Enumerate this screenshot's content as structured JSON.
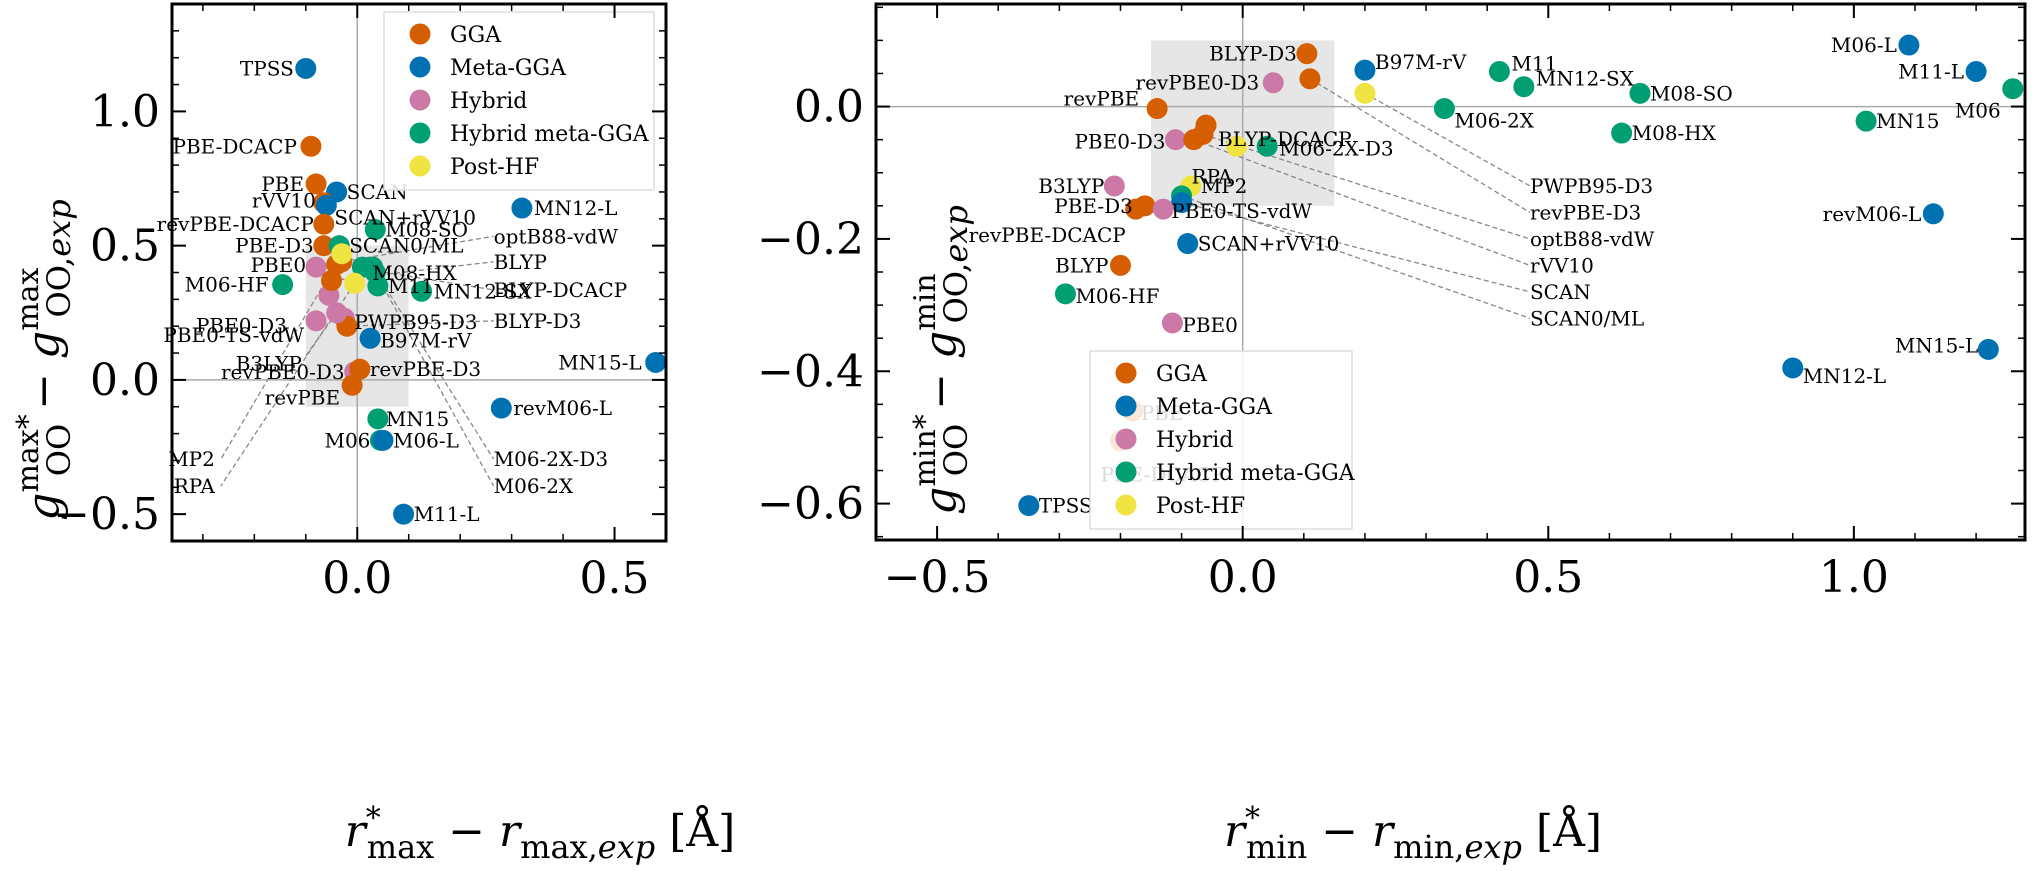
{
  "colors": {
    "GGA": "#D55E00",
    "Meta-GGA": "#0072B2",
    "Hybrid": "#CC79A7",
    "Hybrid meta-GGA": "#009E73",
    "Post-HF": "#F0E442"
  },
  "chart_data": [
    {
      "type": "scatter",
      "xlabel": "r*max − rmax,exp [Å]",
      "ylabel": "g*maxOO − gmaxOO,exp",
      "xlim": [
        -0.36,
        0.6
      ],
      "ylim": [
        -0.6,
        1.4
      ],
      "xticks": [
        {
          "v": 0.0,
          "label": "0.0"
        },
        {
          "v": 0.5,
          "label": "0.5"
        }
      ],
      "yticks": [
        {
          "v": -0.5,
          "label": "−0.5"
        },
        {
          "v": 0.0,
          "label": "0.0"
        },
        {
          "v": 0.5,
          "label": "0.5"
        },
        {
          "v": 1.0,
          "label": "1.0"
        }
      ],
      "grid": false,
      "legend": {
        "placement": "top-right",
        "entries": [
          "GGA",
          "Meta-GGA",
          "Hybrid",
          "Hybrid meta-GGA",
          "Post-HF"
        ]
      },
      "shaded_region": {
        "x": [
          -0.1,
          0.1
        ],
        "y": [
          -0.1,
          0.5
        ]
      },
      "points": [
        {
          "name": "TPSS",
          "cat": "Meta-GGA",
          "x": -0.1,
          "y": 1.16
        },
        {
          "name": "PBE-DCACP",
          "cat": "GGA",
          "x": -0.09,
          "y": 0.87
        },
        {
          "name": "PBE",
          "cat": "GGA",
          "x": -0.08,
          "y": 0.73
        },
        {
          "name": "SCAN",
          "cat": "Meta-GGA",
          "x": -0.04,
          "y": 0.7
        },
        {
          "name": "rVV10",
          "cat": "GGA",
          "x": -0.065,
          "y": 0.66
        },
        {
          "name": "SCAN+rVV10",
          "cat": "Meta-GGA",
          "x": -0.06,
          "y": 0.65
        },
        {
          "name": "revPBE-DCACP",
          "cat": "GGA",
          "x": -0.065,
          "y": 0.58
        },
        {
          "name": "MN12-L",
          "cat": "Meta-GGA",
          "x": 0.32,
          "y": 0.64
        },
        {
          "name": "M08-SO",
          "cat": "Hybrid meta-GGA",
          "x": 0.035,
          "y": 0.56
        },
        {
          "name": "PBE-D3",
          "cat": "GGA",
          "x": -0.065,
          "y": 0.5
        },
        {
          "name": "SCAN0/ML",
          "cat": "Hybrid meta-GGA",
          "x": -0.035,
          "y": 0.5
        },
        {
          "name": "PBE0",
          "cat": "Hybrid",
          "x": -0.08,
          "y": 0.42
        },
        {
          "name": "M06-HF",
          "cat": "Hybrid meta-GGA",
          "x": -0.145,
          "y": 0.355
        },
        {
          "name": "M08-HX",
          "cat": "Hybrid meta-GGA",
          "x": 0.01,
          "y": 0.42
        },
        {
          "name": "M11",
          "cat": "Hybrid meta-GGA",
          "x": 0.04,
          "y": 0.35
        },
        {
          "name": "MN12-SX",
          "cat": "Hybrid meta-GGA",
          "x": 0.125,
          "y": 0.33
        },
        {
          "name": "PBE0-D3",
          "cat": "Hybrid",
          "x": -0.055,
          "y": 0.315
        },
        {
          "name": "PBE0-TS-vdW",
          "cat": "Hybrid",
          "x": -0.08,
          "y": 0.22
        },
        {
          "name": "PWPB95-D3",
          "cat": "Hybrid",
          "x": -0.025,
          "y": 0.23
        },
        {
          "name": "B97M-rV",
          "cat": "Meta-GGA",
          "x": 0.025,
          "y": 0.155
        },
        {
          "name": "revPBE0-D3",
          "cat": "Hybrid",
          "x": -0.005,
          "y": 0.03
        },
        {
          "name": "revPBE-D3",
          "cat": "GGA",
          "x": 0.005,
          "y": 0.04
        },
        {
          "name": "revPBE",
          "cat": "GGA",
          "x": -0.01,
          "y": -0.02
        },
        {
          "name": "MN15-L",
          "cat": "Meta-GGA",
          "x": 0.58,
          "y": 0.065
        },
        {
          "name": "revM06-L",
          "cat": "Meta-GGA",
          "x": 0.28,
          "y": -0.105
        },
        {
          "name": "MN15",
          "cat": "Hybrid meta-GGA",
          "x": 0.04,
          "y": -0.145
        },
        {
          "name": "M06",
          "cat": "Hybrid meta-GGA",
          "x": 0.045,
          "y": -0.225
        },
        {
          "name": "M06-L",
          "cat": "Meta-GGA",
          "x": 0.05,
          "y": -0.225
        },
        {
          "name": "M11-L",
          "cat": "Meta-GGA",
          "x": 0.09,
          "y": -0.5
        },
        {
          "name": "BLYP-DCACP",
          "cat": "GGA",
          "x": -0.04,
          "y": 0.43
        },
        {
          "name": "BLYP",
          "cat": "GGA",
          "x": -0.05,
          "y": 0.37
        },
        {
          "name": "optB88-vdW",
          "cat": "GGA",
          "x": -0.03,
          "y": 0.44
        },
        {
          "name": "BLYP-D3",
          "cat": "GGA",
          "x": -0.02,
          "y": 0.2
        },
        {
          "name": "M06-2X-D3",
          "cat": "Hybrid meta-GGA",
          "x": 0.03,
          "y": 0.42
        },
        {
          "name": "M06-2X",
          "cat": "Hybrid meta-GGA",
          "x": 0.035,
          "y": 0.4
        },
        {
          "name": "MP2",
          "cat": "Post-HF",
          "x": -0.03,
          "y": 0.47
        },
        {
          "name": "RPA",
          "cat": "Post-HF",
          "x": -0.005,
          "y": 0.36
        },
        {
          "name": "B3LYP",
          "cat": "Hybrid",
          "x": -0.04,
          "y": 0.25
        }
      ],
      "label_lines": [
        {
          "name": "optB88-vdW",
          "from": [
            -0.03,
            0.44
          ],
          "to": [
            0.265,
            0.535
          ]
        },
        {
          "name": "BLYP",
          "from": [
            -0.05,
            0.37
          ],
          "to": [
            0.265,
            0.44
          ]
        },
        {
          "name": "BLYP-DCACP",
          "from": [
            -0.04,
            0.43
          ],
          "to": [
            0.265,
            0.335
          ]
        },
        {
          "name": "BLYP-D3",
          "from": [
            -0.02,
            0.2
          ],
          "to": [
            0.265,
            0.22
          ]
        },
        {
          "name": "M06-2X-D3",
          "from": [
            0.03,
            0.42
          ],
          "to": [
            0.265,
            -0.295
          ]
        },
        {
          "name": "M06-2X",
          "from": [
            0.035,
            0.4
          ],
          "to": [
            0.265,
            -0.395
          ]
        },
        {
          "name": "MP2",
          "from": [
            -0.03,
            0.47
          ],
          "to": [
            -0.265,
            -0.295
          ]
        },
        {
          "name": "RPA",
          "from": [
            -0.005,
            0.36
          ],
          "to": [
            -0.265,
            -0.395
          ]
        },
        {
          "name": "B3LYP",
          "from": [
            -0.04,
            0.25
          ],
          "to": [
            -0.1,
            0.09
          ]
        }
      ]
    },
    {
      "type": "scatter",
      "xlabel": "r*min − rmin,exp [Å]",
      "ylabel": "g*minOO − gminOO,exp",
      "xlim": [
        -0.6,
        1.28
      ],
      "ylim": [
        -0.655,
        0.155
      ],
      "xticks": [
        {
          "v": -0.5,
          "label": "−0.5"
        },
        {
          "v": 0.0,
          "label": "0.0"
        },
        {
          "v": 0.5,
          "label": "0.5"
        },
        {
          "v": 1.0,
          "label": "1.0"
        }
      ],
      "yticks": [
        {
          "v": -0.6,
          "label": "−0.6"
        },
        {
          "v": -0.4,
          "label": "−0.4"
        },
        {
          "v": -0.2,
          "label": "−0.2"
        },
        {
          "v": 0.0,
          "label": "0.0"
        }
      ],
      "grid": false,
      "legend": {
        "placement": "bottom-right",
        "entries": [
          "GGA",
          "Meta-GGA",
          "Hybrid",
          "Hybrid meta-GGA",
          "Post-HF"
        ]
      },
      "shaded_region": {
        "x": [
          -0.15,
          0.15
        ],
        "y": [
          -0.15,
          0.1
        ]
      },
      "points": [
        {
          "name": "BLYP-D3",
          "cat": "GGA",
          "x": 0.105,
          "y": 0.08
        },
        {
          "name": "B97M-rV",
          "cat": "Meta-GGA",
          "x": 0.2,
          "y": 0.055
        },
        {
          "name": "M11",
          "cat": "Hybrid meta-GGA",
          "x": 0.42,
          "y": 0.053
        },
        {
          "name": "MN12-SX",
          "cat": "Hybrid meta-GGA",
          "x": 0.46,
          "y": 0.03
        },
        {
          "name": "M06-L",
          "cat": "Meta-GGA",
          "x": 1.09,
          "y": 0.093
        },
        {
          "name": "M11-L",
          "cat": "Meta-GGA",
          "x": 1.2,
          "y": 0.053
        },
        {
          "name": "M06",
          "cat": "Hybrid meta-GGA",
          "x": 1.26,
          "y": 0.027
        },
        {
          "name": "revPBE0-D3",
          "cat": "Hybrid",
          "x": 0.05,
          "y": 0.036
        },
        {
          "name": "revPBE-D3",
          "cat": "GGA",
          "x": 0.11,
          "y": 0.042
        },
        {
          "name": "PWPB95-D3",
          "cat": "Post-HF",
          "x": 0.2,
          "y": 0.02
        },
        {
          "name": "revPBE",
          "cat": "GGA",
          "x": -0.14,
          "y": -0.003
        },
        {
          "name": "M06-2X",
          "cat": "Hybrid meta-GGA",
          "x": 0.33,
          "y": -0.003
        },
        {
          "name": "M08-SO",
          "cat": "Hybrid meta-GGA",
          "x": 0.65,
          "y": 0.02
        },
        {
          "name": "MN15",
          "cat": "Hybrid meta-GGA",
          "x": 1.02,
          "y": -0.022
        },
        {
          "name": "BLYP-DCACP",
          "cat": "GGA",
          "x": -0.06,
          "y": -0.028
        },
        {
          "name": "M08-HX",
          "cat": "Hybrid meta-GGA",
          "x": 0.62,
          "y": -0.04
        },
        {
          "name": "PBE0-D3",
          "cat": "Hybrid",
          "x": -0.11,
          "y": -0.05
        },
        {
          "name": "optB88-vdW",
          "cat": "GGA",
          "x": -0.065,
          "y": -0.042
        },
        {
          "name": "rVV10",
          "cat": "GGA",
          "x": -0.08,
          "y": -0.05
        },
        {
          "name": "RPA",
          "cat": "Post-HF",
          "x": -0.01,
          "y": -0.06
        },
        {
          "name": "M06-2X-D3",
          "cat": "Hybrid meta-GGA",
          "x": 0.04,
          "y": -0.06
        },
        {
          "name": "B3LYP",
          "cat": "Hybrid",
          "x": -0.21,
          "y": -0.12
        },
        {
          "name": "MP2",
          "cat": "Post-HF",
          "x": -0.085,
          "y": -0.12
        },
        {
          "name": "SCAN0/ML",
          "cat": "Hybrid meta-GGA",
          "x": -0.1,
          "y": -0.135
        },
        {
          "name": "PBE-D3",
          "cat": "GGA",
          "x": -0.16,
          "y": -0.15
        },
        {
          "name": "revPBE-DCACP",
          "cat": "GGA",
          "x": -0.175,
          "y": -0.155
        },
        {
          "name": "SCAN",
          "cat": "Meta-GGA",
          "x": -0.1,
          "y": -0.145
        },
        {
          "name": "PBE0-TS-vdW",
          "cat": "Hybrid",
          "x": -0.13,
          "y": -0.155
        },
        {
          "name": "revM06-L",
          "cat": "Meta-GGA",
          "x": 1.13,
          "y": -0.162
        },
        {
          "name": "SCAN+rVV10",
          "cat": "Meta-GGA",
          "x": -0.09,
          "y": -0.207
        },
        {
          "name": "BLYP",
          "cat": "GGA",
          "x": -0.2,
          "y": -0.24
        },
        {
          "name": "M06-HF",
          "cat": "Hybrid meta-GGA",
          "x": -0.29,
          "y": -0.283
        },
        {
          "name": "PBE0",
          "cat": "Hybrid",
          "x": -0.115,
          "y": -0.327
        },
        {
          "name": "MN15-L",
          "cat": "Meta-GGA",
          "x": 1.22,
          "y": -0.367
        },
        {
          "name": "MN12-L",
          "cat": "Meta-GGA",
          "x": 0.9,
          "y": -0.395
        },
        {
          "name": "PBE",
          "cat": "GGA",
          "x": -0.18,
          "y": -0.46
        },
        {
          "name": "PBE-DCACP",
          "cat": "GGA",
          "x": -0.2,
          "y": -0.505
        },
        {
          "name": "TPSS",
          "cat": "Meta-GGA",
          "x": -0.35,
          "y": -0.603
        }
      ],
      "label_lines": [
        {
          "name": "PWPB95-D3",
          "from": [
            0.2,
            0.02
          ],
          "to": [
            0.47,
            -0.12
          ]
        },
        {
          "name": "revPBE-D3",
          "from": [
            0.11,
            0.042
          ],
          "to": [
            0.47,
            -0.16
          ]
        },
        {
          "name": "optB88-vdW",
          "from": [
            -0.065,
            -0.042
          ],
          "to": [
            0.47,
            -0.2
          ]
        },
        {
          "name": "rVV10",
          "from": [
            -0.08,
            -0.05
          ],
          "to": [
            0.47,
            -0.24
          ]
        },
        {
          "name": "SCAN",
          "from": [
            -0.1,
            -0.145
          ],
          "to": [
            0.47,
            -0.28
          ]
        },
        {
          "name": "SCAN0/ML",
          "from": [
            -0.1,
            -0.135
          ],
          "to": [
            0.47,
            -0.32
          ]
        }
      ]
    }
  ]
}
